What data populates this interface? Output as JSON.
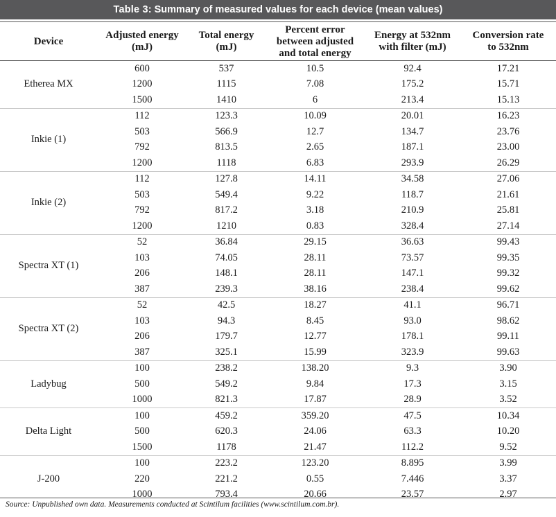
{
  "caption": {
    "label": "Table 3",
    "text": ": Summary of measured values for each device (mean values)"
  },
  "columns": [
    "Device",
    "Adjusted energy (mJ)",
    "Total energy (mJ)",
    "Percent error between adjusted and total energy",
    "Energy at 532nm with filter (mJ)",
    "Conversion rate to 532nm"
  ],
  "column_lines": [
    [
      "Device"
    ],
    [
      "Adjusted energy",
      "(mJ)"
    ],
    [
      "Total energy",
      "(mJ)"
    ],
    [
      "Percent error",
      "between adjusted",
      "and total energy"
    ],
    [
      "Energy at 532nm",
      "with filter (mJ)"
    ],
    [
      "Conversion rate",
      "to 532nm"
    ]
  ],
  "groups": [
    {
      "device": "Etherea MX",
      "rows": [
        [
          "600",
          "537",
          "10.5",
          "92.4",
          "17.21"
        ],
        [
          "1200",
          "1115",
          "7.08",
          "175.2",
          "15.71"
        ],
        [
          "1500",
          "1410",
          "6",
          "213.4",
          "15.13"
        ]
      ]
    },
    {
      "device": "Inkie (1)",
      "rows": [
        [
          "112",
          "123.3",
          "10.09",
          "20.01",
          "16.23"
        ],
        [
          "503",
          "566.9",
          "12.7",
          "134.7",
          "23.76"
        ],
        [
          "792",
          "813.5",
          "2.65",
          "187.1",
          "23.00"
        ],
        [
          "1200",
          "1118",
          "6.83",
          "293.9",
          "26.29"
        ]
      ]
    },
    {
      "device": "Inkie (2)",
      "rows": [
        [
          "112",
          "127.8",
          "14.11",
          "34.58",
          "27.06"
        ],
        [
          "503",
          "549.4",
          "9.22",
          "118.7",
          "21.61"
        ],
        [
          "792",
          "817.2",
          "3.18",
          "210.9",
          "25.81"
        ],
        [
          "1200",
          "1210",
          "0.83",
          "328.4",
          "27.14"
        ]
      ]
    },
    {
      "device": "Spectra XT (1)",
      "rows": [
        [
          "52",
          "36.84",
          "29.15",
          "36.63",
          "99.43"
        ],
        [
          "103",
          "74.05",
          "28.11",
          "73.57",
          "99.35"
        ],
        [
          "206",
          "148.1",
          "28.11",
          "147.1",
          "99.32"
        ],
        [
          "387",
          "239.3",
          "38.16",
          "238.4",
          "99.62"
        ]
      ]
    },
    {
      "device": "Spectra XT (2)",
      "rows": [
        [
          "52",
          "42.5",
          "18.27",
          "41.1",
          "96.71"
        ],
        [
          "103",
          "94.3",
          "8.45",
          "93.0",
          "98.62"
        ],
        [
          "206",
          "179.7",
          "12.77",
          "178.1",
          "99.11"
        ],
        [
          "387",
          "325.1",
          "15.99",
          "323.9",
          "99.63"
        ]
      ]
    },
    {
      "device": "Ladybug",
      "rows": [
        [
          "100",
          "238.2",
          "138.20",
          "9.3",
          "3.90"
        ],
        [
          "500",
          "549.2",
          "9.84",
          "17.3",
          "3.15"
        ],
        [
          "1000",
          "821.3",
          "17.87",
          "28.9",
          "3.52"
        ]
      ]
    },
    {
      "device": "Delta Light",
      "rows": [
        [
          "100",
          "459.2",
          "359.20",
          "47.5",
          "10.34"
        ],
        [
          "500",
          "620.3",
          "24.06",
          "63.3",
          "10.20"
        ],
        [
          "1500",
          "1178",
          "21.47",
          "112.2",
          "9.52"
        ]
      ]
    },
    {
      "device": "J-200",
      "rows": [
        [
          "100",
          "223.2",
          "123.20",
          "8.895",
          "3.99"
        ],
        [
          "220",
          "221.2",
          "0.55",
          "7.446",
          "3.37"
        ],
        [
          "1000",
          "793.4",
          "20.66",
          "23.57",
          "2.97"
        ]
      ]
    }
  ],
  "source": "Source: Unpublished own data. Measurements conducted at Scintilum facilities (www.scintilum.com.br)."
}
